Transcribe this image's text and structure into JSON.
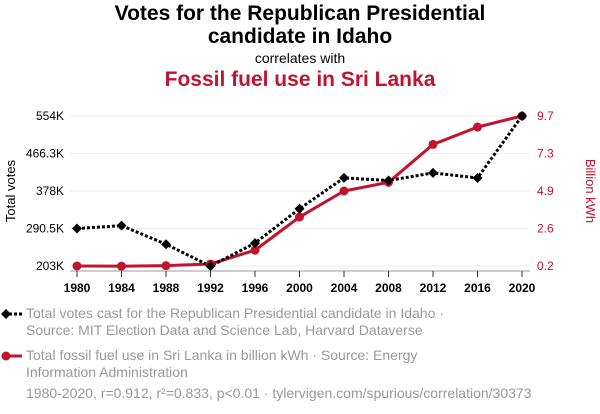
{
  "title_line1": "Votes for the Republican Presidential",
  "title_line2": "candidate in Idaho",
  "correlates": "correlates with",
  "title2": "Fossil fuel use in Sri Lanka",
  "legend": [
    {
      "line1": "Total votes cast for the Republican Presidential candidate in Idaho ·",
      "line2": "Source: MIT Election Data and Science Lab, Harvard Dataverse"
    },
    {
      "line1": "Total fossil fuel use in Sri Lanka in billion kWh · Source: Energy",
      "line2": "Information Administration"
    }
  ],
  "footer": "1980-2020, r=0.912, r²=0.833, p<0.01 · tylervigen.com/spurious/correlation/30373",
  "chart_data": {
    "type": "line",
    "x": [
      1980,
      1984,
      1988,
      1992,
      1996,
      2000,
      2004,
      2008,
      2012,
      2016,
      2020
    ],
    "series": [
      {
        "name": "Total votes",
        "axis": "left",
        "color": "#000000",
        "values": [
          290700,
          297500,
          253900,
          202600,
          256600,
          336900,
          409200,
          403000,
          420900,
          409000,
          554100
        ]
      },
      {
        "name": "Billion kWh",
        "axis": "right",
        "color": "#c0142f",
        "values": [
          0.2,
          0.19,
          0.22,
          0.33,
          1.2,
          3.3,
          4.95,
          5.5,
          7.9,
          9.0,
          9.7
        ]
      }
    ],
    "ylabel": "Total votes",
    "y2label": "Billion kWh",
    "ylim": [
      203000,
      554000
    ],
    "y2lim": [
      0.2,
      9.7
    ],
    "yticks": [
      "203K",
      "290.5K",
      "378K",
      "466.3K",
      "554K"
    ],
    "y2ticks": [
      "0.2",
      "2.6",
      "4.9",
      "7.3",
      "9.7"
    ],
    "xticks": [
      "1980",
      "1984",
      "1988",
      "1992",
      "1996",
      "2000",
      "2004",
      "2008",
      "2012",
      "2016",
      "2020"
    ]
  }
}
